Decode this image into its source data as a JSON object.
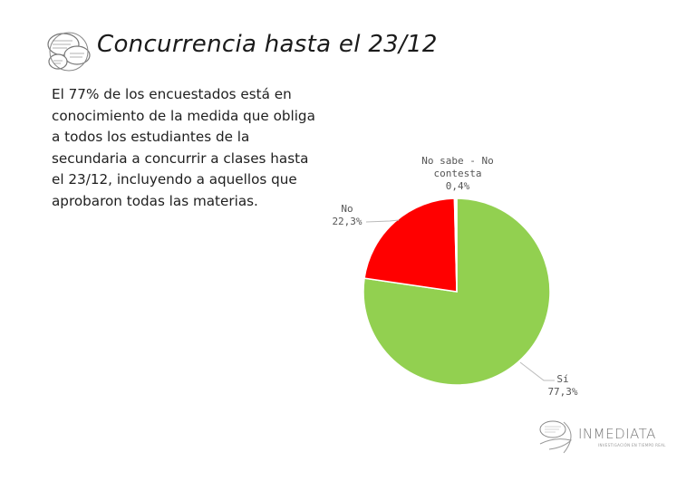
{
  "header": {
    "title": "Concurrencia hasta el 23/12",
    "logo_icon": "speech-bubbles-icon"
  },
  "description": {
    "lines": [
      "El 77% de los encuestados está en",
      "conocimiento de la medida que obliga",
      "a todos los estudiantes de la",
      "secundaria a concurrir a clases hasta",
      "el 23/12, incluyendo a aquellos que",
      "aprobaron todas las materias."
    ]
  },
  "labels": {
    "nsnc_line1": "No sabe - No",
    "nsnc_line2": "contesta",
    "nsnc_value": "0,4%",
    "no_name": "No",
    "no_value": "22,3%",
    "si_name": "Sí",
    "si_value": "77,3%"
  },
  "footer": {
    "brand": "INMEDIATA",
    "brand_sub": "INVESTIGACIÓN EN TIEMPO REAL",
    "logo_icon": "speech-bubbles-hand-icon"
  },
  "colors": {
    "si": "#92d050",
    "no": "#ff0000",
    "nsnc": "#ffffff"
  },
  "chart_data": {
    "type": "pie",
    "title": "Concurrencia hasta el 23/12",
    "categories": [
      "Sí",
      "No",
      "No sabe - No contesta"
    ],
    "values": [
      77.3,
      22.3,
      0.4
    ],
    "unit": "%",
    "colors": [
      "#92d050",
      "#ff0000",
      "#ffffff"
    ],
    "start_angle": "12 o'clock, clockwise",
    "legend": "data labels outside slices with leader lines"
  }
}
